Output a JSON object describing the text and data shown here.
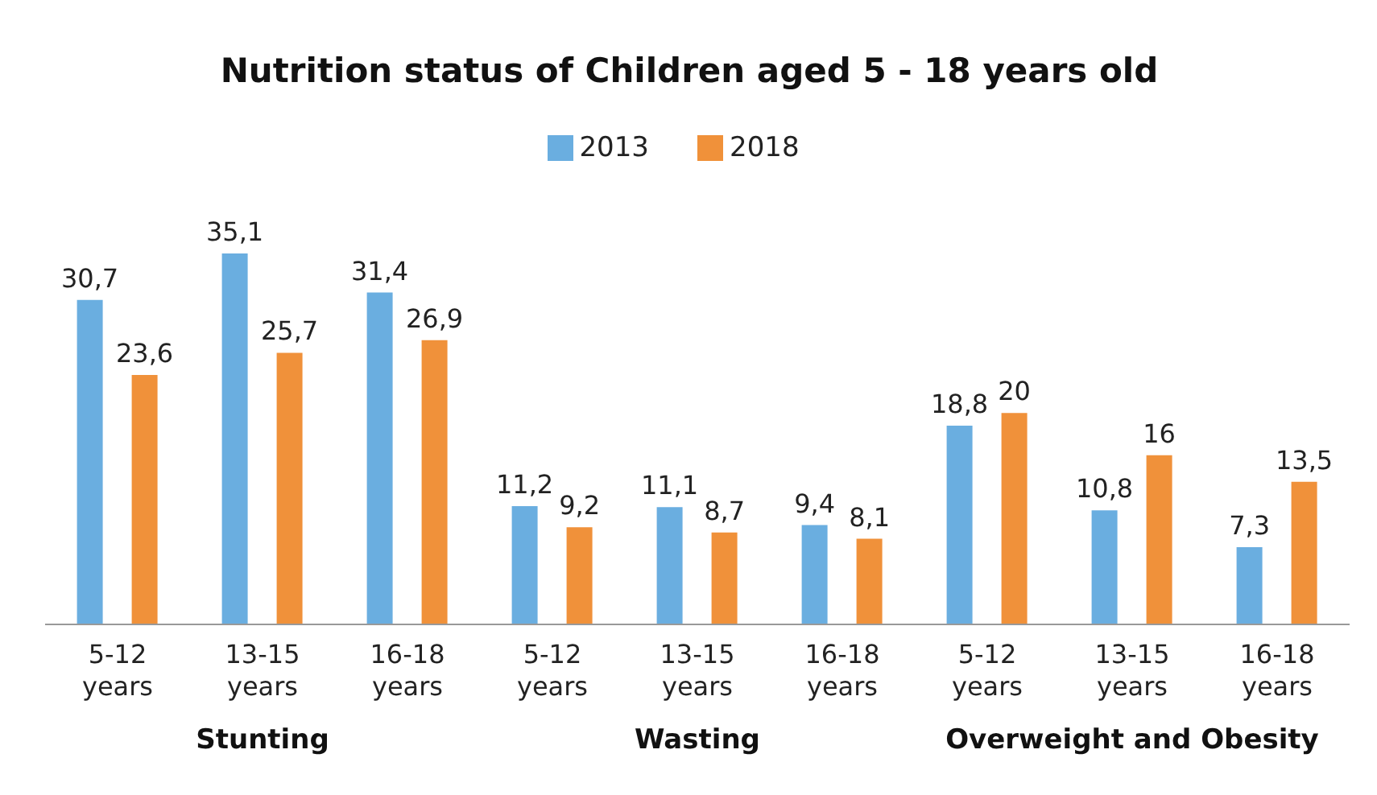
{
  "chart_data": {
    "type": "bar",
    "title": "Nutrition status of Children aged 5 - 18 years old",
    "categories": [
      "5-12 years",
      "13-15 years",
      "16-18 years",
      "5-12 years",
      "13-15 years",
      "16-18 years",
      "5-12 years",
      "13-15 years",
      "16-18 years"
    ],
    "series": [
      {
        "name": "2013",
        "color": "#6aaee0",
        "values": [
          30.7,
          35.1,
          31.4,
          11.2,
          11.1,
          9.4,
          18.8,
          10.8,
          7.3
        ],
        "value_labels": [
          "30,7",
          "35,1",
          "31,4",
          "11,2",
          "11,1",
          "9,4",
          "18,8",
          "10,8",
          "7,3"
        ]
      },
      {
        "name": "2018",
        "color": "#f0913a",
        "values": [
          23.6,
          25.7,
          26.9,
          9.2,
          8.7,
          8.1,
          20,
          16,
          13.5
        ],
        "value_labels": [
          "23,6",
          "25,7",
          "26,9",
          "9,2",
          "8,7",
          "8,1",
          "20",
          "16",
          "13,5"
        ]
      }
    ],
    "annotations": [
      "Stunting",
      "Wasting",
      "Overweight and Obesity"
    ],
    "legend": "top",
    "grid": false
  }
}
